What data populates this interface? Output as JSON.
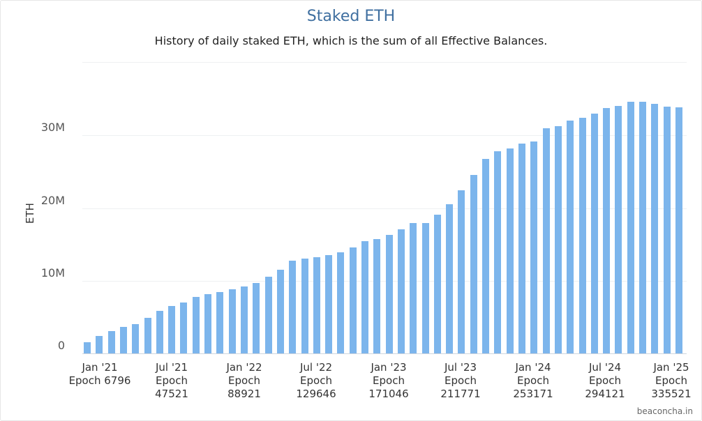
{
  "title": "Staked ETH",
  "subtitle": "History of daily staked ETH, which is the sum of all Effective Balances.",
  "credit": "beaconcha.in",
  "colors": {
    "bar": "#7cb5ec",
    "title": "#3f6fa0"
  },
  "chart_data": {
    "type": "bar",
    "title": "Staked ETH",
    "subtitle": "History of daily staked ETH, which is the sum of all Effective Balances.",
    "xlabel": "",
    "ylabel": "ETH",
    "ylim": [
      0,
      40000000
    ],
    "yticks": [
      "0",
      "10M",
      "20M",
      "30M"
    ],
    "grid": true,
    "legend": "none",
    "xticks": [
      {
        "label": "Jan '21",
        "epoch": "Epoch 6796"
      },
      {
        "label": "Jul '21",
        "epoch": "Epoch 47521"
      },
      {
        "label": "Jan '22",
        "epoch": "Epoch 88921"
      },
      {
        "label": "Jul '22",
        "epoch": "Epoch 129646"
      },
      {
        "label": "Jan '23",
        "epoch": "Epoch 171046"
      },
      {
        "label": "Jul '23",
        "epoch": "Epoch 211771"
      },
      {
        "label": "Jan '24",
        "epoch": "Epoch 253171"
      },
      {
        "label": "Jul '24",
        "epoch": "Epoch 294121"
      },
      {
        "label": "Jan '25",
        "epoch": "Epoch 335521"
      }
    ],
    "series": [
      {
        "name": "Staked ETH",
        "values_millions": [
          1.5,
          2.4,
          3.1,
          3.6,
          4.0,
          4.9,
          5.8,
          6.5,
          7.0,
          7.8,
          8.1,
          8.4,
          8.8,
          9.2,
          9.7,
          10.5,
          11.5,
          12.7,
          13.0,
          13.2,
          13.5,
          13.9,
          14.5,
          15.4,
          15.7,
          16.3,
          17.0,
          17.9,
          17.9,
          19.0,
          20.5,
          22.4,
          24.5,
          26.7,
          27.8,
          28.1,
          28.8,
          29.1,
          30.9,
          31.2,
          32.0,
          32.3,
          32.9,
          33.7,
          34.0,
          34.5,
          34.5,
          34.3,
          33.9,
          33.8
        ]
      }
    ]
  }
}
